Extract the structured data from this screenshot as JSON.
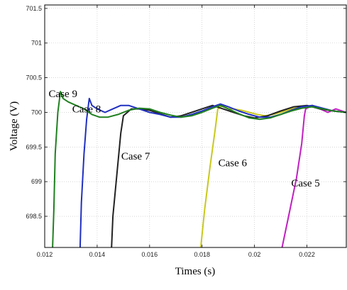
{
  "chart_data": {
    "type": "line",
    "title": "",
    "xlabel": "Times (s)",
    "ylabel": "Voltage (V)",
    "xlim": [
      0.012,
      0.0235
    ],
    "ylim": [
      698.05,
      701.55
    ],
    "grid": true,
    "xticks": [
      {
        "value": 0.012,
        "label": "0.012"
      },
      {
        "value": 0.014,
        "label": "0.014"
      },
      {
        "value": 0.016,
        "label": "0.016"
      },
      {
        "value": 0.018,
        "label": "0.018"
      },
      {
        "value": 0.02,
        "label": "0.02"
      },
      {
        "value": 0.022,
        "label": "0.022"
      }
    ],
    "yticks": [
      {
        "value": 698.5,
        "label": "698.5"
      },
      {
        "value": 699,
        "label": "699"
      },
      {
        "value": 699.5,
        "label": "699.5"
      },
      {
        "value": 700,
        "label": "700"
      },
      {
        "value": 700.5,
        "label": "700.5"
      },
      {
        "value": 701,
        "label": "701"
      },
      {
        "value": 701.5,
        "label": "701.5"
      }
    ],
    "series": [
      {
        "color": "#c020c0",
        "x": [
          0.02105,
          0.0213,
          0.0216,
          0.0218,
          0.0219,
          0.02195,
          0.0222,
          0.0225,
          0.0228,
          0.0231,
          0.0235
        ],
        "y": [
          698.05,
          698.5,
          699.05,
          699.55,
          699.95,
          700.05,
          700.1,
          700.05,
          700.0,
          700.05,
          700.0
        ]
      },
      {
        "color": "#c8c81e",
        "x": [
          0.01795,
          0.0181,
          0.0183,
          0.0185,
          0.0186,
          0.0188,
          0.019,
          0.0192,
          0.0195,
          0.0198,
          0.0201,
          0.0204,
          0.0207,
          0.021,
          0.0214,
          0.0218,
          0.0222,
          0.0226,
          0.023,
          0.0235
        ],
        "y": [
          698.05,
          698.6,
          699.2,
          699.75,
          700.05,
          700.1,
          700.05,
          700.05,
          700.03,
          700.0,
          699.97,
          699.95,
          699.97,
          700.0,
          700.05,
          700.08,
          700.1,
          700.05,
          700.02,
          700.0
        ]
      },
      {
        "color": "#222222",
        "x": [
          0.01455,
          0.0146,
          0.0148,
          0.0149,
          0.015,
          0.0153,
          0.0156,
          0.016,
          0.0164,
          0.0168,
          0.0172,
          0.0176,
          0.018,
          0.0184,
          0.0188,
          0.0192,
          0.0196,
          0.02,
          0.0205,
          0.021,
          0.0215,
          0.022,
          0.0225,
          0.023,
          0.0235
        ],
        "y": [
          698.05,
          698.5,
          699.3,
          699.7,
          699.95,
          700.05,
          700.05,
          700.03,
          699.98,
          699.93,
          699.95,
          700.0,
          700.05,
          700.1,
          700.05,
          700.0,
          699.95,
          699.92,
          699.95,
          700.02,
          700.08,
          700.1,
          700.05,
          700.02,
          700.0
        ]
      },
      {
        "color": "#2030c0",
        "x": [
          0.01335,
          0.0134,
          0.0135,
          0.0136,
          0.0137,
          0.0138,
          0.014,
          0.0143,
          0.0146,
          0.0149,
          0.0152,
          0.0156,
          0.016,
          0.0164,
          0.0168,
          0.0172,
          0.0176,
          0.018,
          0.0184,
          0.0187,
          0.019,
          0.0194,
          0.0198,
          0.0202,
          0.0206,
          0.021,
          0.0214,
          0.0218,
          0.0222,
          0.0226,
          0.023,
          0.0235
        ],
        "y": [
          698.05,
          698.7,
          699.4,
          699.9,
          700.2,
          700.1,
          700.05,
          700.0,
          700.05,
          700.1,
          700.1,
          700.05,
          700.0,
          699.97,
          699.93,
          699.93,
          699.97,
          700.02,
          700.08,
          700.12,
          700.08,
          700.02,
          699.97,
          699.93,
          699.93,
          699.97,
          700.03,
          700.08,
          700.1,
          700.06,
          700.02,
          700.0
        ]
      },
      {
        "color": "#208020",
        "x": [
          0.0123,
          0.01235,
          0.0124,
          0.0125,
          0.0126,
          0.0127,
          0.0129,
          0.0132,
          0.0135,
          0.0138,
          0.0141,
          0.0144,
          0.0148,
          0.0152,
          0.0156,
          0.016,
          0.0164,
          0.0168,
          0.0172,
          0.0176,
          0.018,
          0.0184,
          0.0187,
          0.019,
          0.0194,
          0.0198,
          0.0202,
          0.0206,
          0.021,
          0.0214,
          0.0218,
          0.0222,
          0.0226,
          0.023,
          0.0235
        ],
        "y": [
          698.05,
          698.6,
          699.4,
          700.0,
          700.3,
          700.2,
          700.15,
          700.1,
          700.05,
          699.97,
          699.93,
          699.93,
          699.97,
          700.03,
          700.06,
          700.05,
          700.0,
          699.96,
          699.93,
          699.95,
          700.0,
          700.06,
          700.1,
          700.05,
          699.98,
          699.92,
          699.9,
          699.92,
          699.97,
          700.02,
          700.06,
          700.08,
          700.05,
          700.02,
          700.0
        ]
      }
    ],
    "annotations": [
      {
        "text": "Case 9",
        "x": 0.01215,
        "y": 700.22
      },
      {
        "text": "Case 8",
        "x": 0.01305,
        "y": 700.0
      },
      {
        "text": "Case 7",
        "x": 0.01492,
        "y": 699.32
      },
      {
        "text": "Case 6",
        "x": 0.01862,
        "y": 699.22
      },
      {
        "text": "Case 5",
        "x": 0.0214,
        "y": 698.93
      }
    ]
  }
}
